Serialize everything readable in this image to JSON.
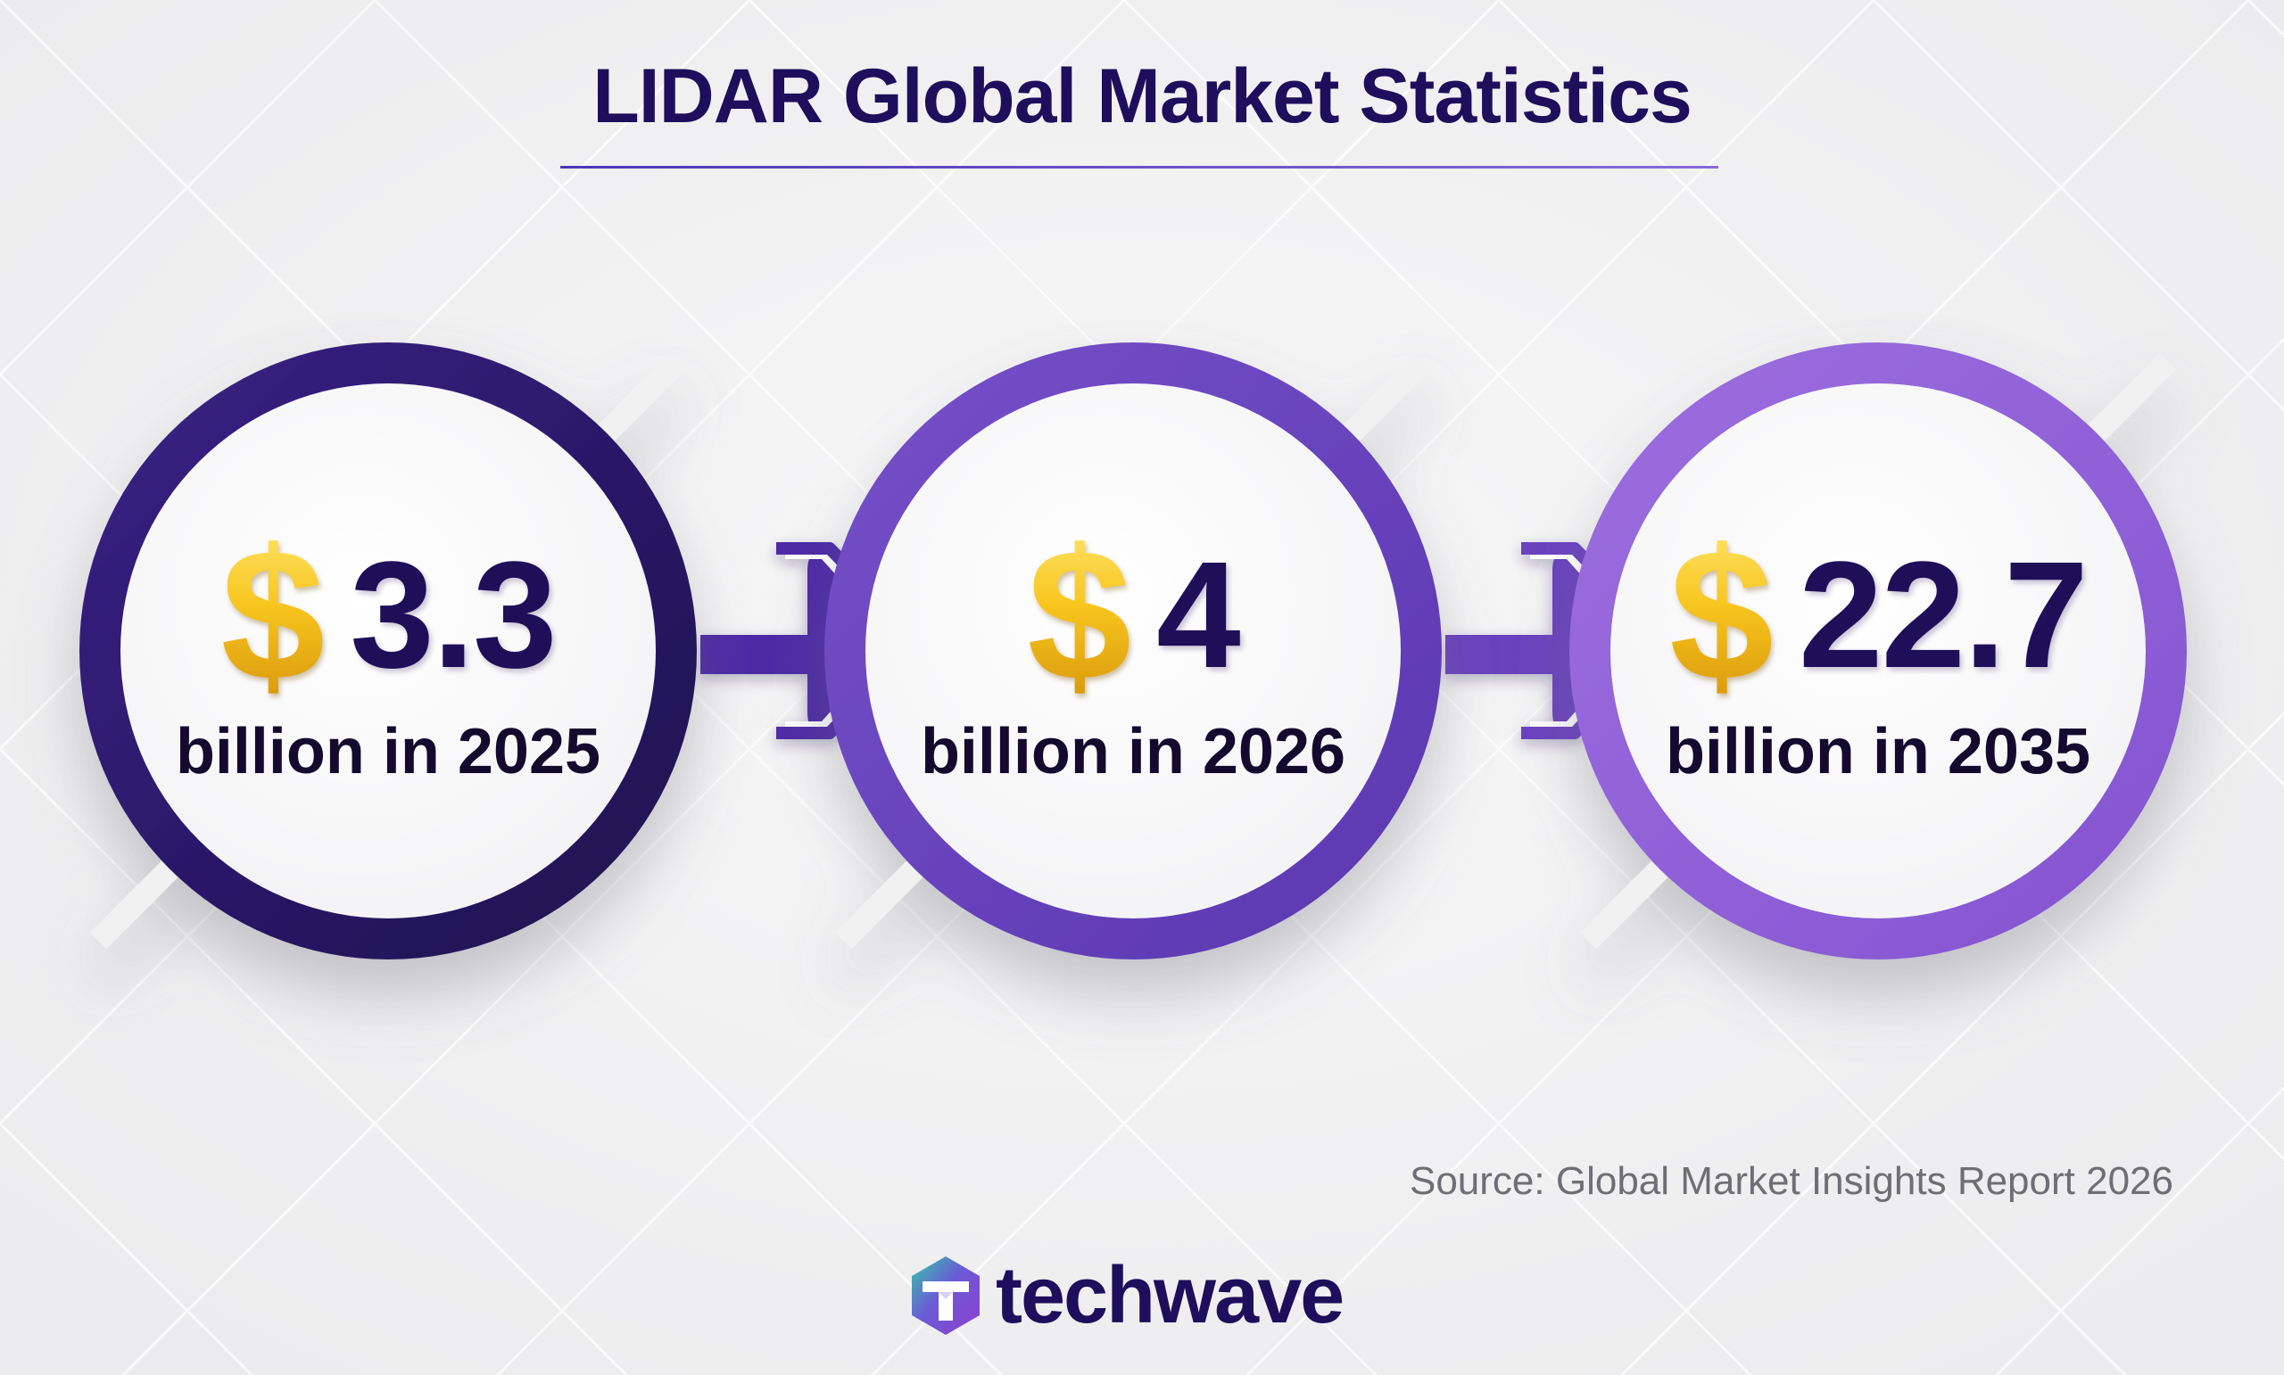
{
  "title": "LIDAR Global Market Statistics",
  "stats": [
    {
      "currency_symbol": "$",
      "amount": "3.3",
      "caption": "billion in 2025"
    },
    {
      "currency_symbol": "$",
      "amount": "4",
      "caption": "billion in 2026"
    },
    {
      "currency_symbol": "$",
      "amount": "22.7",
      "caption": "billion in 2035"
    }
  ],
  "source": "Source: Global Market Insights Report 2026",
  "brand": {
    "name": "techwave",
    "icon": "hexagon-t-logo-icon"
  },
  "colors": {
    "title": "#1d0f5b",
    "ring_1": "#2b1a6e",
    "ring_2": "#6a43bf",
    "ring_3": "#9160d6",
    "dollar_gold": "#f2c21b",
    "number": "#1f0f58"
  }
}
